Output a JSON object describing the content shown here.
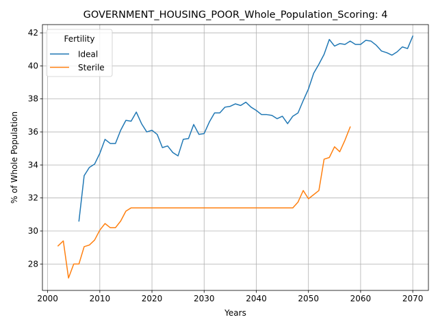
{
  "chart_data": {
    "type": "line",
    "title": "GOVERNMENT_HOUSING_POOR_Whole_Population_Scoring: 4",
    "xlabel": "Years",
    "ylabel": "% of Whole Population",
    "xlim": [
      1999,
      2073
    ],
    "ylim": [
      26.4,
      42.5
    ],
    "xticks": [
      2000,
      2010,
      2020,
      2030,
      2040,
      2050,
      2060,
      2070
    ],
    "yticks": [
      28,
      30,
      32,
      34,
      36,
      38,
      40,
      42
    ],
    "grid": true,
    "legend": {
      "title": "Fertility",
      "position": "top-left"
    },
    "series": [
      {
        "name": "Ideal",
        "color": "#1f77b4",
        "x": [
          2006,
          2007,
          2008,
          2009,
          2010,
          2011,
          2012,
          2013,
          2014,
          2015,
          2016,
          2017,
          2018,
          2019,
          2020,
          2021,
          2022,
          2023,
          2024,
          2025,
          2026,
          2027,
          2028,
          2029,
          2030,
          2031,
          2032,
          2033,
          2034,
          2035,
          2036,
          2037,
          2038,
          2039,
          2040,
          2041,
          2042,
          2043,
          2044,
          2045,
          2046,
          2047,
          2048,
          2049,
          2050,
          2051,
          2052,
          2053,
          2054,
          2055,
          2056,
          2057,
          2058,
          2059,
          2060,
          2061,
          2062,
          2063,
          2064,
          2065,
          2066,
          2067,
          2068,
          2069,
          2070
        ],
        "y": [
          30.6,
          33.35,
          33.85,
          34.05,
          34.7,
          35.55,
          35.3,
          35.3,
          36.1,
          36.7,
          36.65,
          37.2,
          36.5,
          36.0,
          36.1,
          35.85,
          35.05,
          35.15,
          34.75,
          34.55,
          35.55,
          35.6,
          36.45,
          35.85,
          35.9,
          36.6,
          37.15,
          37.15,
          37.5,
          37.55,
          37.7,
          37.6,
          37.8,
          37.5,
          37.3,
          37.05,
          37.05,
          37.0,
          36.8,
          36.95,
          36.5,
          36.95,
          37.15,
          37.9,
          38.6,
          39.55,
          40.1,
          40.7,
          41.6,
          41.2,
          41.35,
          41.3,
          41.5,
          41.3,
          41.3,
          41.55,
          41.5,
          41.25,
          40.9,
          40.8,
          40.65,
          40.85,
          41.15,
          41.05,
          41.8
        ]
      },
      {
        "name": "Sterile",
        "color": "#ff7f0e",
        "x": [
          2002,
          2003,
          2004,
          2005,
          2006,
          2007,
          2008,
          2009,
          2010,
          2011,
          2012,
          2013,
          2014,
          2015,
          2016,
          2017,
          2018,
          2019,
          2020,
          2021,
          2022,
          2023,
          2024,
          2025,
          2026,
          2027,
          2028,
          2029,
          2030,
          2031,
          2032,
          2033,
          2034,
          2035,
          2036,
          2037,
          2038,
          2039,
          2040,
          2041,
          2042,
          2043,
          2044,
          2045,
          2046,
          2047,
          2048,
          2049,
          2050,
          2051,
          2052,
          2053,
          2054,
          2055,
          2056,
          2057,
          2058
        ],
        "y": [
          29.1,
          29.4,
          27.15,
          28.0,
          28.0,
          29.05,
          29.15,
          29.45,
          30.05,
          30.45,
          30.2,
          30.2,
          30.6,
          31.2,
          31.4,
          31.4,
          31.4,
          31.4,
          31.4,
          31.4,
          31.4,
          31.4,
          31.4,
          31.4,
          31.4,
          31.4,
          31.4,
          31.4,
          31.4,
          31.4,
          31.4,
          31.4,
          31.4,
          31.4,
          31.4,
          31.4,
          31.4,
          31.4,
          31.4,
          31.4,
          31.4,
          31.4,
          31.4,
          31.4,
          31.4,
          31.4,
          31.75,
          32.45,
          31.95,
          32.2,
          32.45,
          34.35,
          34.45,
          35.1,
          34.8,
          35.5,
          36.3
        ]
      }
    ]
  }
}
